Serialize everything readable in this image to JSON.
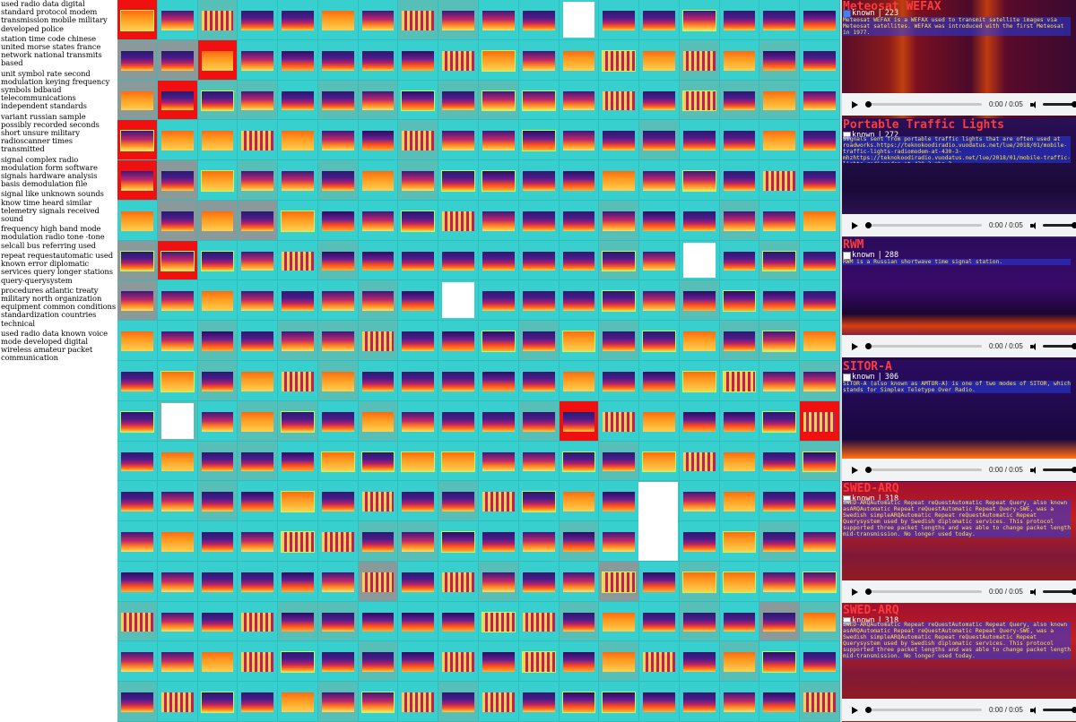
{
  "topics": [
    "used radio data digital standard protocol modem transmission mobile military developed police",
    "station time code chinese united morse states france network national transmits based",
    "unit symbol rate second modulation keying frequency symbols bdbaud telecommunications independent standards",
    "variant russian sample possibly recorded seconds short unsure military radioscanner times transmitted",
    "signal complex radio modulation form software signals hardware analysis basis demodulation file",
    "signal like unknown sounds know time heard similar telemetry signals received sound",
    "frequency high band mode modulation radio tone -tone selcall bus referring used",
    "repeat requestautomatic used known error diplomatic services query longer stations query-querysystem",
    "procedures atlantic treaty military north organization equipment common conditions standardization countries technical",
    "used radio data known voice mode developed digital wireless amateur packet communication"
  ],
  "panels": [
    {
      "title": "Meteosat WEFAX",
      "known_label": "known",
      "known_checked": true,
      "separator": "|",
      "count": "223",
      "description": "Meteosat WEFAX is a WEFAX used to transmit satellite images via Meteosat satellites. WEFAX was introduced with the first Meteosat in 1977.",
      "time": "0:00 / 0:05",
      "progress": 0.0
    },
    {
      "title": "Portable Traffic Lights",
      "known_label": "known",
      "known_checked": false,
      "separator": "|",
      "count": "272",
      "description": "Signals sent from portable traffic lights that are often used at roadworks.https://teknokoodiradio.vuodatus.net/lue/2018/01/mobile-traffic-lights-radiomodem-at-430-3-mhzhttps://teknokoodiradio.vuodatus.net/lue/2018/01/mobile-traffic-lights-radiomodem-at-430-3-mhz-2",
      "time": "0:00 / 0:05",
      "progress": 0.0
    },
    {
      "title": "RWM",
      "known_label": "known",
      "known_checked": false,
      "separator": "|",
      "count": "288",
      "description": "RWM is a Russian shortwave time signal station.",
      "time": "0:00 / 0:05",
      "progress": 0.0
    },
    {
      "title": "SITOR-A",
      "known_label": "known",
      "known_checked": false,
      "separator": "|",
      "count": "306",
      "description": "SITOR-A (also known as AMTOR-A) is one of two modes of SITOR, which stands for Simplex Teletype Over Radio.",
      "time": "0:00 / 0:05",
      "progress": 0.0
    },
    {
      "title": "SWED-ARQ",
      "known_label": "known",
      "known_checked": false,
      "separator": "|",
      "count": "318",
      "description": "SWED-ARQAutomatic Repeat reQuestAutomatic Repeat Query, also known asARQAutomatic Repeat reQuestAutomatic Repeat Query-SWE, was a Swedish simpleARQAutomatic Repeat reQuestAutomatic Repeat Querysystem used by Swedish diplomatic services. This protocol supported three packet lengths and was able to change packet length mid-transmission. No longer used today.",
      "time": "0:00 / 0:05",
      "progress": 0.0
    },
    {
      "title": "SWED-ARQ",
      "known_label": "known",
      "known_checked": false,
      "separator": "|",
      "count": "318",
      "description": "SWED-ARQAutomatic Repeat reQuestAutomatic Repeat Query, also known asARQAutomatic Repeat reQuestAutomatic Repeat Query-SWE, was a Swedish simpleARQAutomatic Repeat reQuestAutomatic Repeat Querysystem used by Swedish diplomatic services. This protocol supported three packet lengths and was able to change packet length mid-transmission. No longer used today.",
      "time": "0:00 / 0:05",
      "progress": 0.0
    }
  ],
  "colors": {
    "grid_background": "#38cfcf",
    "title_red": "#ff3a3a",
    "description_yellow": "#ffe14a",
    "panel_background": "#150a2c"
  }
}
